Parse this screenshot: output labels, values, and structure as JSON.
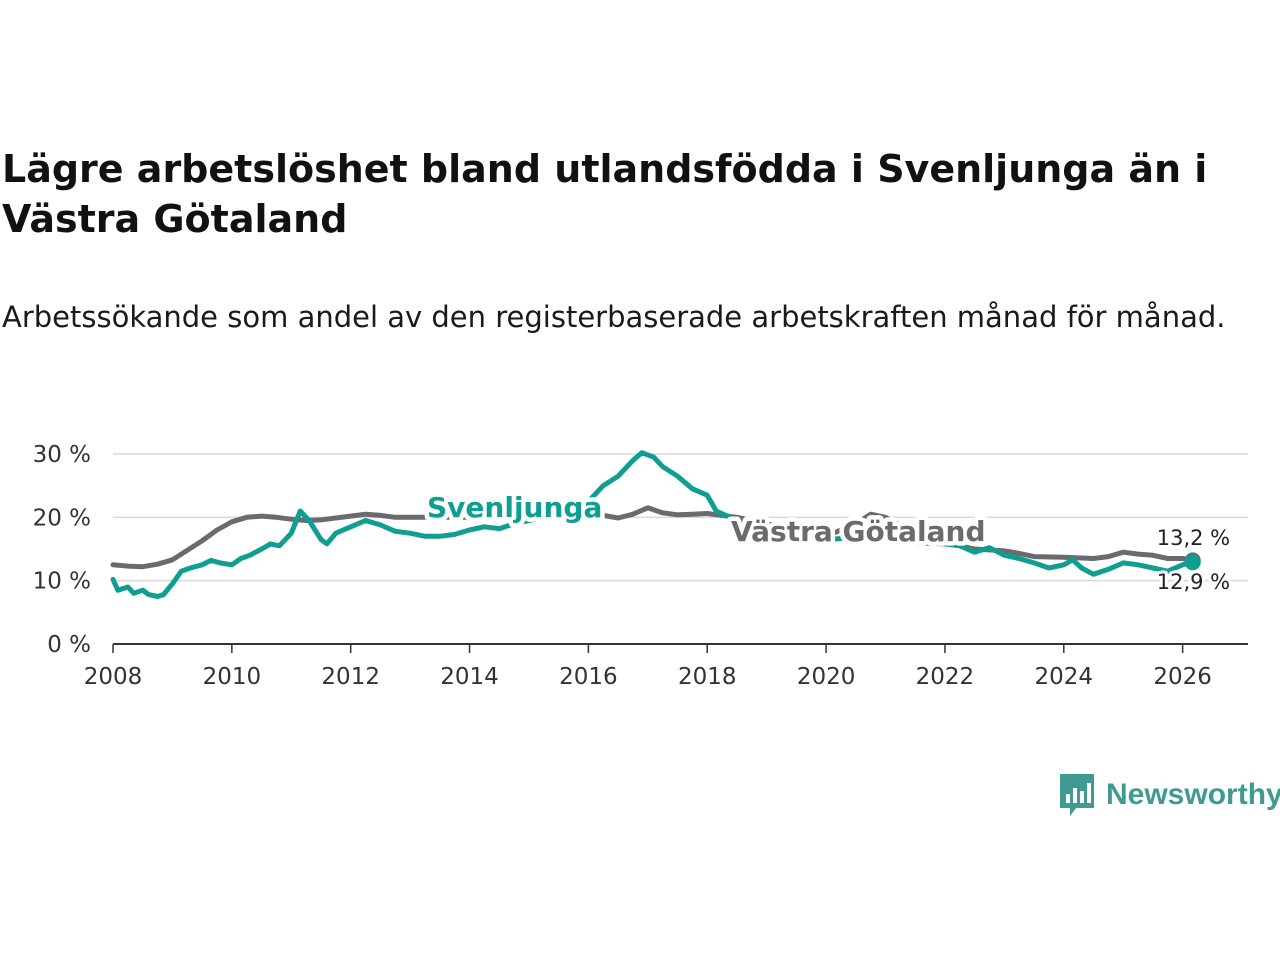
{
  "title": "Lägre arbetslöshet bland utlandsfödda i Svenljunga än i Västra Götaland",
  "subtitle": "Arbetssökande som andel av den registerbaserade arbetskraften månad för månad.",
  "brand": {
    "name": "Newsworthy",
    "icon": "newsworthy-logo-icon"
  },
  "colors": {
    "svenljunga": "#0f9e92",
    "vg": "#6b6b6f",
    "grid": "#d9d9d9",
    "axis": "#333333"
  },
  "chart_data": {
    "type": "line",
    "x_unit": "year",
    "xlim": [
      2008,
      2027.1
    ],
    "ylim": [
      0,
      30
    ],
    "x_ticks": [
      "2008",
      "2010",
      "2012",
      "2014",
      "2016",
      "2018",
      "2020",
      "2022",
      "2024",
      "2026"
    ],
    "y_ticks": [
      "0 %",
      "10 %",
      "20 %",
      "30 %"
    ],
    "series": [
      {
        "name": "Västra Götaland",
        "color": "#6b6b6f",
        "end_label": "13,2 %",
        "points": [
          [
            2008.0,
            12.5
          ],
          [
            2008.25,
            12.3
          ],
          [
            2008.5,
            12.2
          ],
          [
            2008.75,
            12.6
          ],
          [
            2009.0,
            13.3
          ],
          [
            2009.25,
            14.8
          ],
          [
            2009.5,
            16.3
          ],
          [
            2009.75,
            18.0
          ],
          [
            2010.0,
            19.3
          ],
          [
            2010.25,
            20.0
          ],
          [
            2010.5,
            20.2
          ],
          [
            2010.75,
            20.0
          ],
          [
            2011.0,
            19.7
          ],
          [
            2011.25,
            19.5
          ],
          [
            2011.5,
            19.6
          ],
          [
            2011.75,
            19.9
          ],
          [
            2012.0,
            20.2
          ],
          [
            2012.25,
            20.5
          ],
          [
            2012.5,
            20.3
          ],
          [
            2012.75,
            20.0
          ],
          [
            2013.0,
            20.0
          ],
          [
            2013.5,
            20.0
          ],
          [
            2014.0,
            20.0
          ],
          [
            2014.5,
            20.2
          ],
          [
            2015.0,
            20.3
          ],
          [
            2015.5,
            20.5
          ],
          [
            2016.0,
            20.6
          ],
          [
            2016.25,
            20.3
          ],
          [
            2016.5,
            19.9
          ],
          [
            2016.75,
            20.5
          ],
          [
            2017.0,
            21.5
          ],
          [
            2017.25,
            20.7
          ],
          [
            2017.5,
            20.4
          ],
          [
            2017.75,
            20.5
          ],
          [
            2018.0,
            20.6
          ],
          [
            2018.5,
            20.0
          ],
          [
            2019.0,
            19.0
          ],
          [
            2019.5,
            18.0
          ],
          [
            2020.0,
            17.0
          ],
          [
            2020.5,
            19.0
          ],
          [
            2020.75,
            20.5
          ],
          [
            2021.0,
            20.0
          ],
          [
            2021.5,
            17.5
          ],
          [
            2022.0,
            16.0
          ],
          [
            2022.5,
            15.0
          ],
          [
            2023.0,
            14.7
          ],
          [
            2023.25,
            14.3
          ],
          [
            2023.5,
            13.8
          ],
          [
            2024.0,
            13.7
          ],
          [
            2024.5,
            13.5
          ],
          [
            2024.75,
            13.8
          ],
          [
            2025.0,
            14.5
          ],
          [
            2025.25,
            14.2
          ],
          [
            2025.5,
            14.0
          ],
          [
            2025.75,
            13.5
          ],
          [
            2026.0,
            13.5
          ],
          [
            2026.17,
            13.2
          ]
        ]
      },
      {
        "name": "Svenljunga",
        "color": "#0f9e92",
        "end_label": "12,9 %",
        "points": [
          [
            2008.0,
            10.2
          ],
          [
            2008.08,
            8.5
          ],
          [
            2008.25,
            9.0
          ],
          [
            2008.35,
            8.0
          ],
          [
            2008.5,
            8.5
          ],
          [
            2008.6,
            7.8
          ],
          [
            2008.75,
            7.5
          ],
          [
            2008.85,
            7.8
          ],
          [
            2009.0,
            9.5
          ],
          [
            2009.15,
            11.5
          ],
          [
            2009.3,
            12.0
          ],
          [
            2009.5,
            12.5
          ],
          [
            2009.65,
            13.2
          ],
          [
            2009.8,
            12.8
          ],
          [
            2010.0,
            12.5
          ],
          [
            2010.15,
            13.5
          ],
          [
            2010.3,
            14.0
          ],
          [
            2010.5,
            15.0
          ],
          [
            2010.65,
            15.8
          ],
          [
            2010.8,
            15.5
          ],
          [
            2011.0,
            17.5
          ],
          [
            2011.15,
            21.0
          ],
          [
            2011.3,
            19.5
          ],
          [
            2011.5,
            16.5
          ],
          [
            2011.6,
            15.8
          ],
          [
            2011.75,
            17.5
          ],
          [
            2012.0,
            18.5
          ],
          [
            2012.25,
            19.5
          ],
          [
            2012.5,
            18.8
          ],
          [
            2012.75,
            17.8
          ],
          [
            2013.0,
            17.5
          ],
          [
            2013.25,
            17.0
          ],
          [
            2013.5,
            17.0
          ],
          [
            2013.75,
            17.3
          ],
          [
            2014.0,
            18.0
          ],
          [
            2014.25,
            18.5
          ],
          [
            2014.5,
            18.2
          ],
          [
            2014.75,
            19.0
          ],
          [
            2015.0,
            19.5
          ],
          [
            2015.5,
            20.5
          ],
          [
            2015.75,
            20.8
          ],
          [
            2016.0,
            22.5
          ],
          [
            2016.25,
            25.0
          ],
          [
            2016.5,
            26.5
          ],
          [
            2016.75,
            29.0
          ],
          [
            2016.9,
            30.2
          ],
          [
            2017.1,
            29.5
          ],
          [
            2017.25,
            28.0
          ],
          [
            2017.5,
            26.5
          ],
          [
            2017.75,
            24.5
          ],
          [
            2018.0,
            23.5
          ],
          [
            2018.15,
            21.0
          ],
          [
            2018.5,
            19.5
          ],
          [
            2019.0,
            18.5
          ],
          [
            2019.5,
            17.5
          ],
          [
            2020.0,
            16.5
          ],
          [
            2020.5,
            16.8
          ],
          [
            2021.0,
            16.5
          ],
          [
            2021.5,
            16.0
          ],
          [
            2022.0,
            15.8
          ],
          [
            2022.25,
            15.5
          ],
          [
            2022.5,
            14.5
          ],
          [
            2022.75,
            15.2
          ],
          [
            2023.0,
            14.0
          ],
          [
            2023.25,
            13.5
          ],
          [
            2023.5,
            12.8
          ],
          [
            2023.75,
            12.0
          ],
          [
            2024.0,
            12.5
          ],
          [
            2024.15,
            13.3
          ],
          [
            2024.3,
            12.0
          ],
          [
            2024.5,
            11.0
          ],
          [
            2024.75,
            11.8
          ],
          [
            2025.0,
            12.8
          ],
          [
            2025.25,
            12.5
          ],
          [
            2025.5,
            12.0
          ],
          [
            2025.75,
            11.5
          ],
          [
            2026.0,
            12.5
          ],
          [
            2026.17,
            12.9
          ]
        ]
      }
    ]
  }
}
